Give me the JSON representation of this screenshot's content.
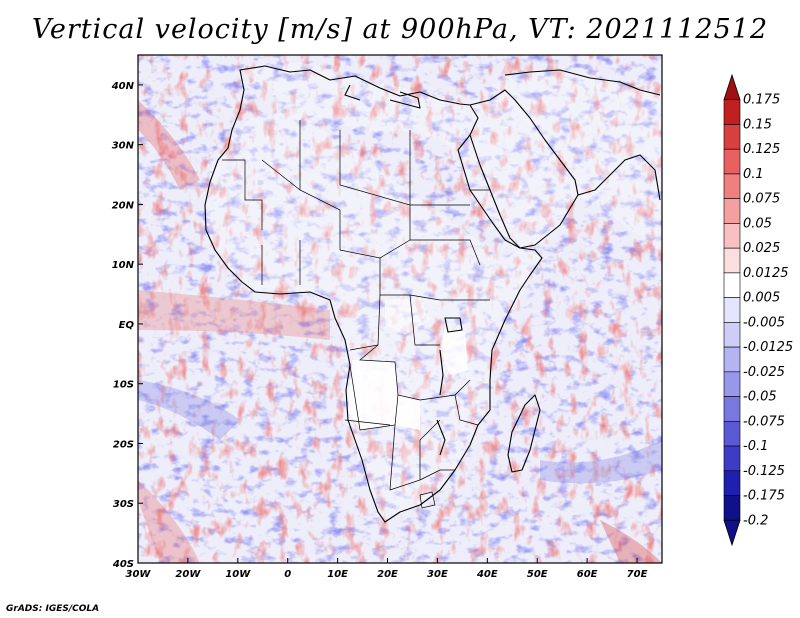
{
  "title": "Vertical velocity [m/s] at 900hPa, VT: 2021112512",
  "credit": "GrADS: IGES/COLA",
  "map": {
    "lon_range": [
      -30,
      75
    ],
    "lat_range": [
      -40,
      45
    ],
    "lon_ticks": [
      "30W",
      "20W",
      "10W",
      "0",
      "10E",
      "20E",
      "30E",
      "40E",
      "50E",
      "60E",
      "70E"
    ],
    "lat_ticks": [
      "40N",
      "30N",
      "20N",
      "10N",
      "EQ",
      "10S",
      "20S",
      "30S",
      "40S"
    ],
    "positive_color": "#d83030",
    "negative_color": "#3030e0"
  },
  "colorbar": {
    "labels": [
      "0.175",
      "0.15",
      "0.125",
      "0.1",
      "0.075",
      "0.05",
      "0.025",
      "0.0125",
      "0.005",
      "-0.005",
      "-0.0125",
      "-0.025",
      "-0.05",
      "-0.075",
      "-0.1",
      "-0.125",
      "-0.175",
      "-0.2"
    ],
    "colors": [
      "#a01010",
      "#c02020",
      "#d84040",
      "#e86060",
      "#f08080",
      "#f4a0a0",
      "#f8c0c0",
      "#fcdede",
      "#ffffff",
      "#e4e4ff",
      "#cdcdf8",
      "#b4b4f2",
      "#9898ea",
      "#7878e0",
      "#5a5ad4",
      "#3c3cc6",
      "#2020b0",
      "#10108a"
    ]
  }
}
